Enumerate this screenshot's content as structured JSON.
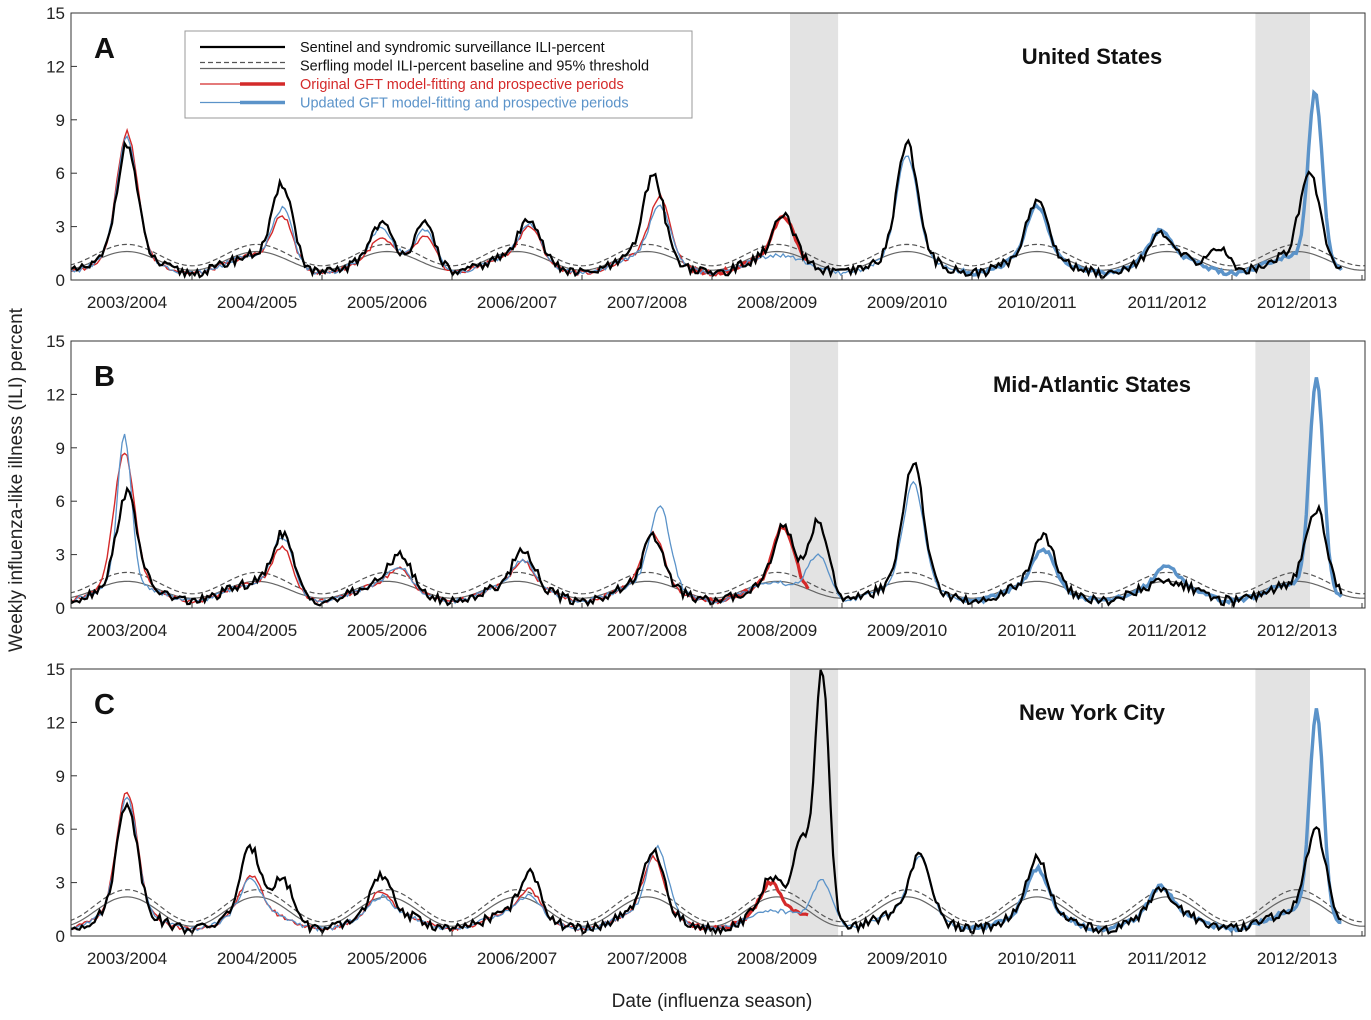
{
  "figure": {
    "ylabel": "Weekly influenza-like illness (ILI) percent",
    "xlabel": "Date (influenza season)"
  },
  "legend": {
    "position": "top-left",
    "items": [
      {
        "label": "Sentinel and syndromic surveillance ILI-percent",
        "color": "#000000"
      },
      {
        "label": "Serfling model ILI-percent baseline and 95% threshold",
        "color": "#222222"
      },
      {
        "label": "Original GFT model-fitting and prospective periods",
        "color": "#d42a2a"
      },
      {
        "label": "Updated GFT model-fitting and prospective periods",
        "color": "#5b93c9"
      }
    ]
  },
  "colors": {
    "surveillance": "#000000",
    "serfling": "#555555",
    "gft_original": "#d42a2a",
    "gft_updated": "#5b93c9",
    "shade": "#e3e3e3"
  },
  "chart_data": [
    {
      "panel": "A",
      "title": "United States",
      "type": "line",
      "ylim": [
        0,
        15
      ],
      "yticks": [
        0,
        3,
        6,
        9,
        12,
        15
      ],
      "x_range_season": [
        0,
        10.4
      ],
      "seasons": [
        "2003/2004",
        "2004/2005",
        "2005/2006",
        "2006/2007",
        "2007/2008",
        "2008/2009",
        "2009/2010",
        "2010/2011",
        "2011/2012",
        "2012/2013"
      ],
      "shaded_periods": [
        [
          5.6,
          5.97
        ],
        [
          9.18,
          9.6
        ]
      ],
      "peaks": {
        "surveillance": [
          [
            0.5,
            7.6
          ],
          [
            1.7,
            5.4
          ],
          [
            2.45,
            3.2
          ],
          [
            2.8,
            3.1
          ],
          [
            3.6,
            3.5
          ],
          [
            4.55,
            5.9
          ],
          [
            5.55,
            3.6
          ],
          [
            6.5,
            7.7
          ],
          [
            7.5,
            4.5
          ],
          [
            8.45,
            2.5
          ],
          [
            8.9,
            1.8
          ],
          [
            9.6,
            6.0
          ]
        ],
        "gft_original": [
          [
            0.5,
            8.3
          ],
          [
            1.7,
            3.6
          ],
          [
            2.45,
            2.3
          ],
          [
            2.8,
            2.4
          ],
          [
            3.6,
            3.0
          ],
          [
            4.6,
            4.7
          ],
          [
            5.55,
            3.6
          ]
        ],
        "gft_updated": [
          [
            0.5,
            8.0
          ],
          [
            1.7,
            4.0
          ],
          [
            2.45,
            2.9
          ],
          [
            2.8,
            2.8
          ],
          [
            3.6,
            3.2
          ],
          [
            4.6,
            4.2
          ],
          [
            6.5,
            7.0
          ],
          [
            7.5,
            4.2
          ],
          [
            8.45,
            2.8
          ],
          [
            9.64,
            10.6
          ]
        ],
        "baseline_peak": 1.6,
        "threshold_peak": 2.0
      }
    },
    {
      "panel": "B",
      "title": "Mid-Atlantic States",
      "type": "line",
      "ylim": [
        0,
        15
      ],
      "yticks": [
        0,
        3,
        6,
        9,
        12,
        15
      ],
      "x_range_season": [
        0,
        10.4
      ],
      "seasons": [
        "2003/2004",
        "2004/2005",
        "2005/2006",
        "2006/2007",
        "2007/2008",
        "2008/2009",
        "2009/2010",
        "2010/2011",
        "2011/2012",
        "2012/2013"
      ],
      "shaded_periods": [
        [
          5.6,
          5.97
        ],
        [
          9.18,
          9.6
        ]
      ],
      "peaks": {
        "surveillance": [
          [
            0.5,
            6.5
          ],
          [
            1.7,
            4.2
          ],
          [
            2.6,
            3.1
          ],
          [
            3.55,
            3.3
          ],
          [
            4.55,
            4.0
          ],
          [
            5.55,
            4.6
          ],
          [
            5.82,
            4.9
          ],
          [
            6.55,
            8.2
          ],
          [
            7.55,
            4.1
          ],
          [
            8.5,
            1.5
          ],
          [
            9.65,
            5.6
          ]
        ],
        "gft_original": [
          [
            0.48,
            8.7
          ],
          [
            1.7,
            3.4
          ],
          [
            2.6,
            2.2
          ],
          [
            3.55,
            2.6
          ],
          [
            4.55,
            4.2
          ],
          [
            5.55,
            4.6
          ]
        ],
        "gft_updated": [
          [
            0.48,
            9.7
          ],
          [
            1.7,
            4.0
          ],
          [
            2.6,
            2.3
          ],
          [
            3.55,
            2.7
          ],
          [
            4.6,
            5.7
          ],
          [
            5.82,
            3.0
          ],
          [
            6.55,
            7.0
          ],
          [
            7.55,
            3.3
          ],
          [
            8.5,
            2.4
          ],
          [
            9.65,
            13.0
          ]
        ],
        "baseline_peak": 1.5,
        "threshold_peak": 2.0
      }
    },
    {
      "panel": "C",
      "title": "New York City",
      "type": "line",
      "ylim": [
        0,
        15
      ],
      "yticks": [
        0,
        3,
        6,
        9,
        12,
        15
      ],
      "x_range_season": [
        0,
        10.4
      ],
      "seasons": [
        "2003/2004",
        "2004/2005",
        "2005/2006",
        "2006/2007",
        "2007/2008",
        "2008/2009",
        "2009/2010",
        "2010/2011",
        "2011/2012",
        "2012/2013"
      ],
      "shaded_periods": [
        [
          5.6,
          5.97
        ],
        [
          9.18,
          9.6
        ]
      ],
      "peaks": {
        "surveillance": [
          [
            0.5,
            7.5
          ],
          [
            1.45,
            4.9
          ],
          [
            1.7,
            3.2
          ],
          [
            2.45,
            3.3
          ],
          [
            3.6,
            3.5
          ],
          [
            4.55,
            4.7
          ],
          [
            5.45,
            3.2
          ],
          [
            5.7,
            5.3
          ],
          [
            5.85,
            14.3
          ],
          [
            6.6,
            4.5
          ],
          [
            7.5,
            4.4
          ],
          [
            8.45,
            2.6
          ],
          [
            9.65,
            5.9
          ]
        ],
        "gft_original": [
          [
            0.5,
            8.1
          ],
          [
            1.45,
            3.4
          ],
          [
            2.45,
            2.5
          ],
          [
            3.6,
            2.6
          ],
          [
            4.55,
            4.4
          ],
          [
            5.45,
            3.0
          ],
          [
            5.85,
            1.5
          ]
        ],
        "gft_updated": [
          [
            0.5,
            7.8
          ],
          [
            1.45,
            3.2
          ],
          [
            2.45,
            2.2
          ],
          [
            3.6,
            2.3
          ],
          [
            4.58,
            5.0
          ],
          [
            5.85,
            3.1
          ],
          [
            6.6,
            4.5
          ],
          [
            7.5,
            3.8
          ],
          [
            8.45,
            2.8
          ],
          [
            9.65,
            12.7
          ]
        ],
        "baseline_peak": 2.2,
        "threshold_peak": 2.6
      }
    }
  ]
}
